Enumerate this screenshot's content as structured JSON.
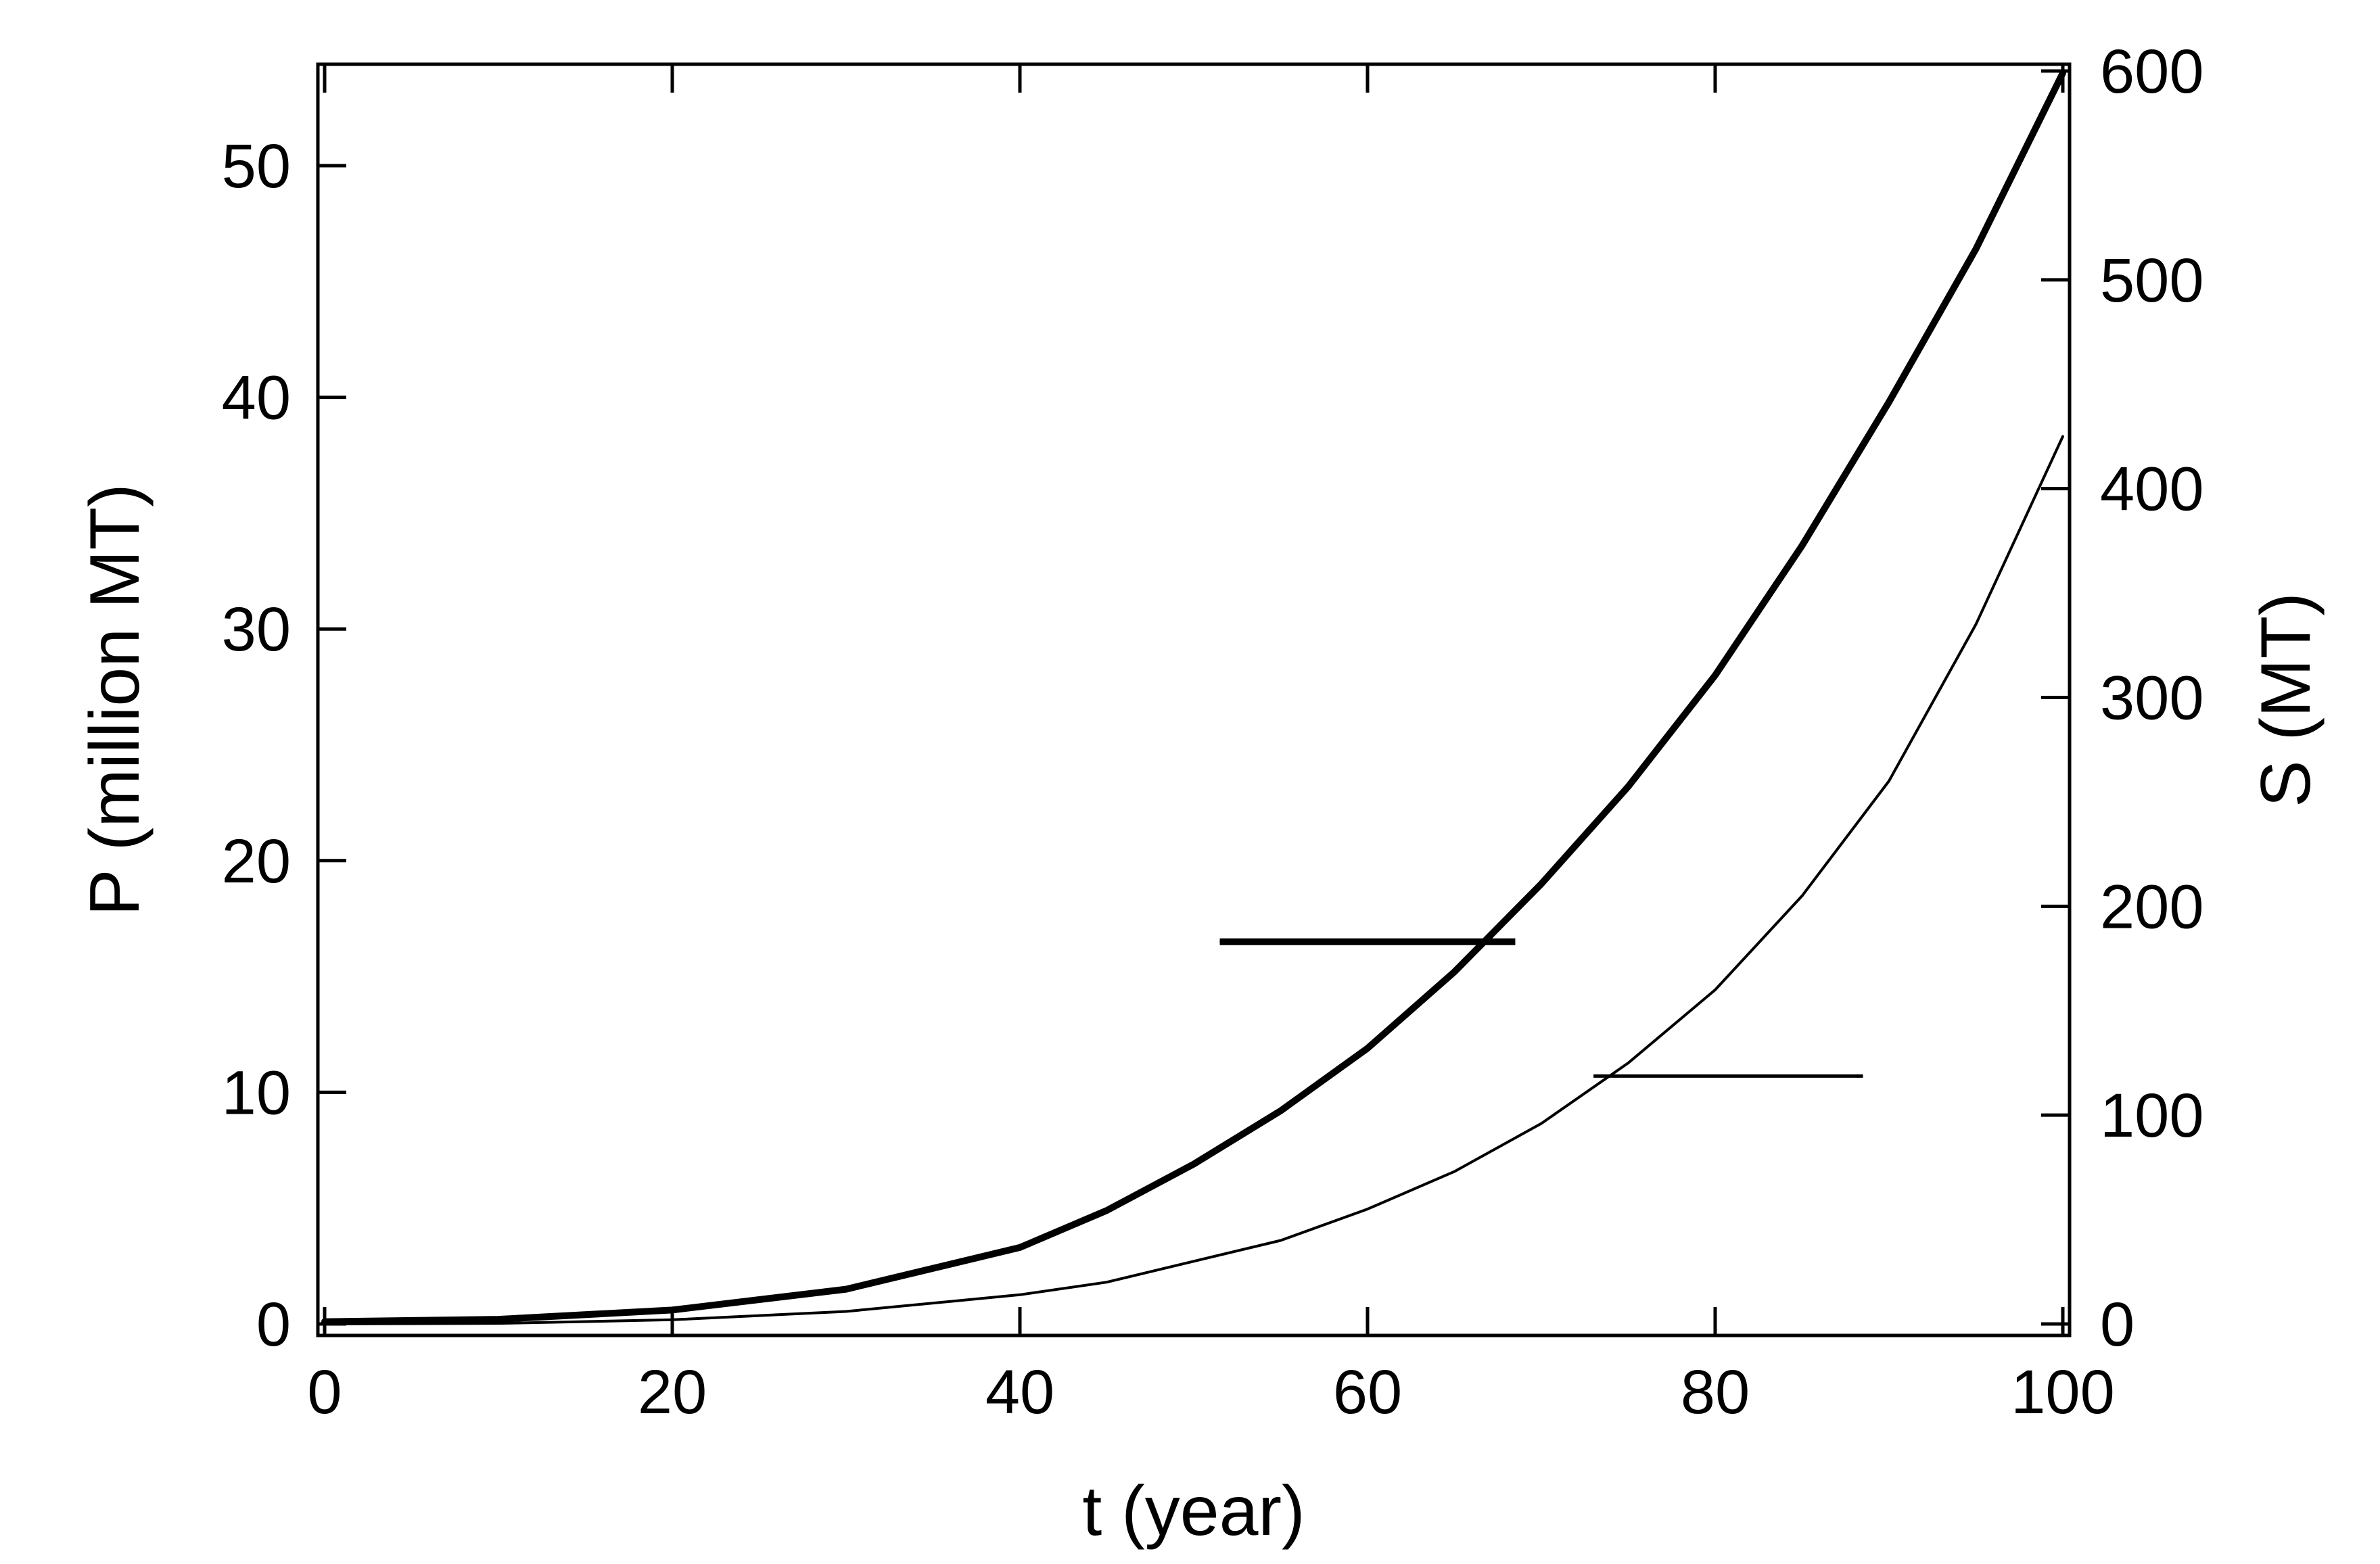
{
  "chart_data": {
    "type": "line",
    "xlabel": "t (year)",
    "ylabel_left": "P (million MT)",
    "ylabel_right": "S (MT)",
    "xlim": [
      0,
      100
    ],
    "ylim_left": [
      0,
      54.5
    ],
    "ylim_right": [
      0,
      600
    ],
    "grid": false,
    "legend": "none",
    "x_ticks": [
      0,
      20,
      40,
      60,
      80,
      100
    ],
    "y_left_ticks": [
      0,
      10,
      20,
      30,
      40,
      50
    ],
    "y_right_ticks": [
      0,
      100,
      200,
      300,
      400,
      500,
      600
    ],
    "series": [
      {
        "axis": "left",
        "style": "thick",
        "x": [
          0,
          10,
          20,
          30,
          40,
          45,
          50,
          55,
          60,
          65,
          70,
          75,
          80,
          85,
          90,
          95,
          100
        ],
        "y": [
          0.1,
          0.2,
          0.6,
          1.5,
          3.3,
          4.9,
          6.9,
          9.2,
          11.9,
          15.2,
          19.0,
          23.2,
          28.0,
          33.6,
          39.8,
          46.4,
          54.0
        ]
      },
      {
        "axis": "right",
        "style": "thin",
        "x": [
          0,
          10,
          20,
          30,
          40,
          45,
          50,
          55,
          60,
          65,
          70,
          75,
          80,
          85,
          90,
          95,
          100
        ],
        "y": [
          0,
          0.3,
          2,
          6,
          14,
          20,
          30,
          40,
          55,
          73,
          96,
          125,
          160,
          205,
          260,
          335,
          425
        ]
      }
    ],
    "arrows": [
      {
        "points_to": "left",
        "x_from": 68.5,
        "x_to": 51.5,
        "y_left": 16.5
      },
      {
        "points_to": "right",
        "x_from": 73,
        "x_to": 88.5,
        "y_left": 10.7
      }
    ]
  }
}
